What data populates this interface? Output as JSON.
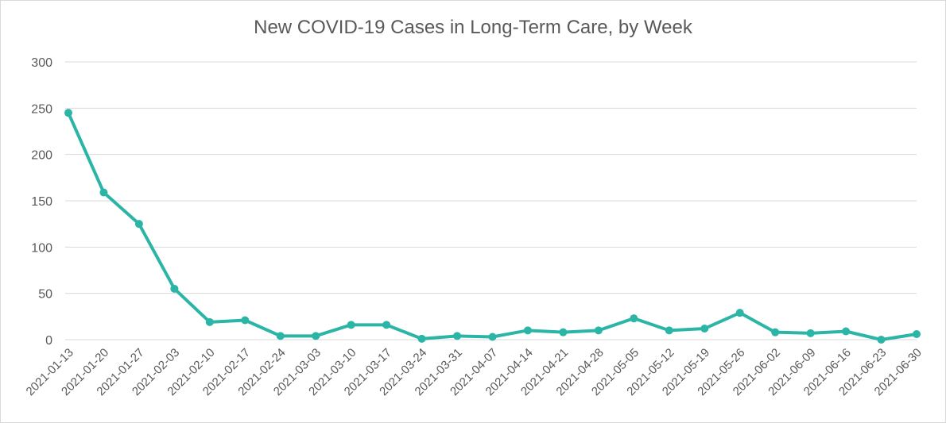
{
  "chart_data": {
    "type": "line",
    "title": "New COVID-19 Cases in Long-Term Care, by Week",
    "xlabel": "",
    "ylabel": "",
    "ylim": [
      0,
      300
    ],
    "yticks": [
      0,
      50,
      100,
      150,
      200,
      250,
      300
    ],
    "grid": true,
    "legend": "none",
    "line_color": "#2bb5a6",
    "categories": [
      "2021-01-13",
      "2021-01-20",
      "2021-01-27",
      "2021-02-03",
      "2021-02-10",
      "2021-02-17",
      "2021-02-24",
      "2021-03-03",
      "2021-03-10",
      "2021-03-17",
      "2021-03-24",
      "2021-03-31",
      "2021-04-07",
      "2021-04-14",
      "2021-04-21",
      "2021-04-28",
      "2021-05-05",
      "2021-05-12",
      "2021-05-19",
      "2021-05-26",
      "2021-06-02",
      "2021-06-09",
      "2021-06-16",
      "2021-06-23",
      "2021-06-30"
    ],
    "series": [
      {
        "values": [
          245,
          159,
          125,
          55,
          19,
          21,
          4,
          4,
          16,
          16,
          1,
          4,
          3,
          10,
          8,
          10,
          23,
          10,
          12,
          29,
          8,
          7,
          9,
          0,
          6
        ]
      }
    ]
  }
}
